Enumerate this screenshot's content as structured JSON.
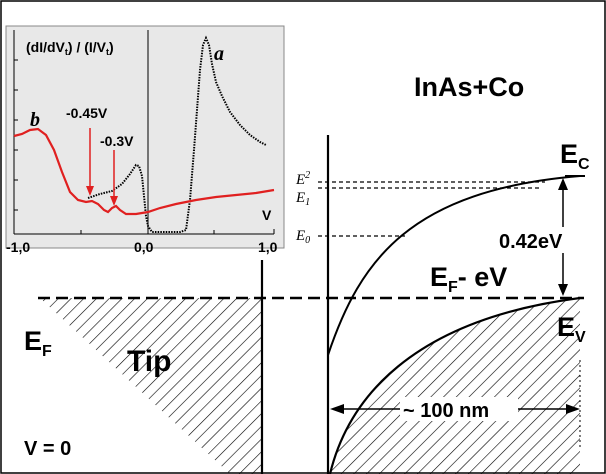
{
  "main_diagram": {
    "title": "InAs+Co",
    "conduction_band": "E",
    "conduction_band_sub": "C",
    "valence_band": "E",
    "valence_band_sub": "V",
    "tip_fermi": "E",
    "tip_fermi_sub": "F",
    "bias_label_e": "E",
    "bias_label_sub": "F",
    "bias_label_rest": "- eV",
    "tip_label": "Tip",
    "gap_label": "0.42eV",
    "width_label": "~ 100 nm",
    "voltage_label": "V = 0",
    "levels": [
      {
        "main": "E",
        "sub": "2"
      },
      {
        "main": "E",
        "sub": "1"
      },
      {
        "main": "E",
        "sub": "0"
      }
    ]
  },
  "inset": {
    "ylabel": "(dI/dV",
    "ylabel_sub": "t",
    "ylabel_mid": ") / (I/V",
    "ylabel_sub2": "t",
    "ylabel_end": ")",
    "xlabel": "V",
    "xticks": [
      "-1,0",
      "0,0",
      "1,0"
    ],
    "curve_a_label": "a",
    "curve_b_label": "b",
    "annotations": [
      "-0.45V",
      "-0.3V"
    ],
    "colors": {
      "curve_a": "#000000",
      "curve_b": "#e02020",
      "background": "#e8e8e8"
    }
  }
}
